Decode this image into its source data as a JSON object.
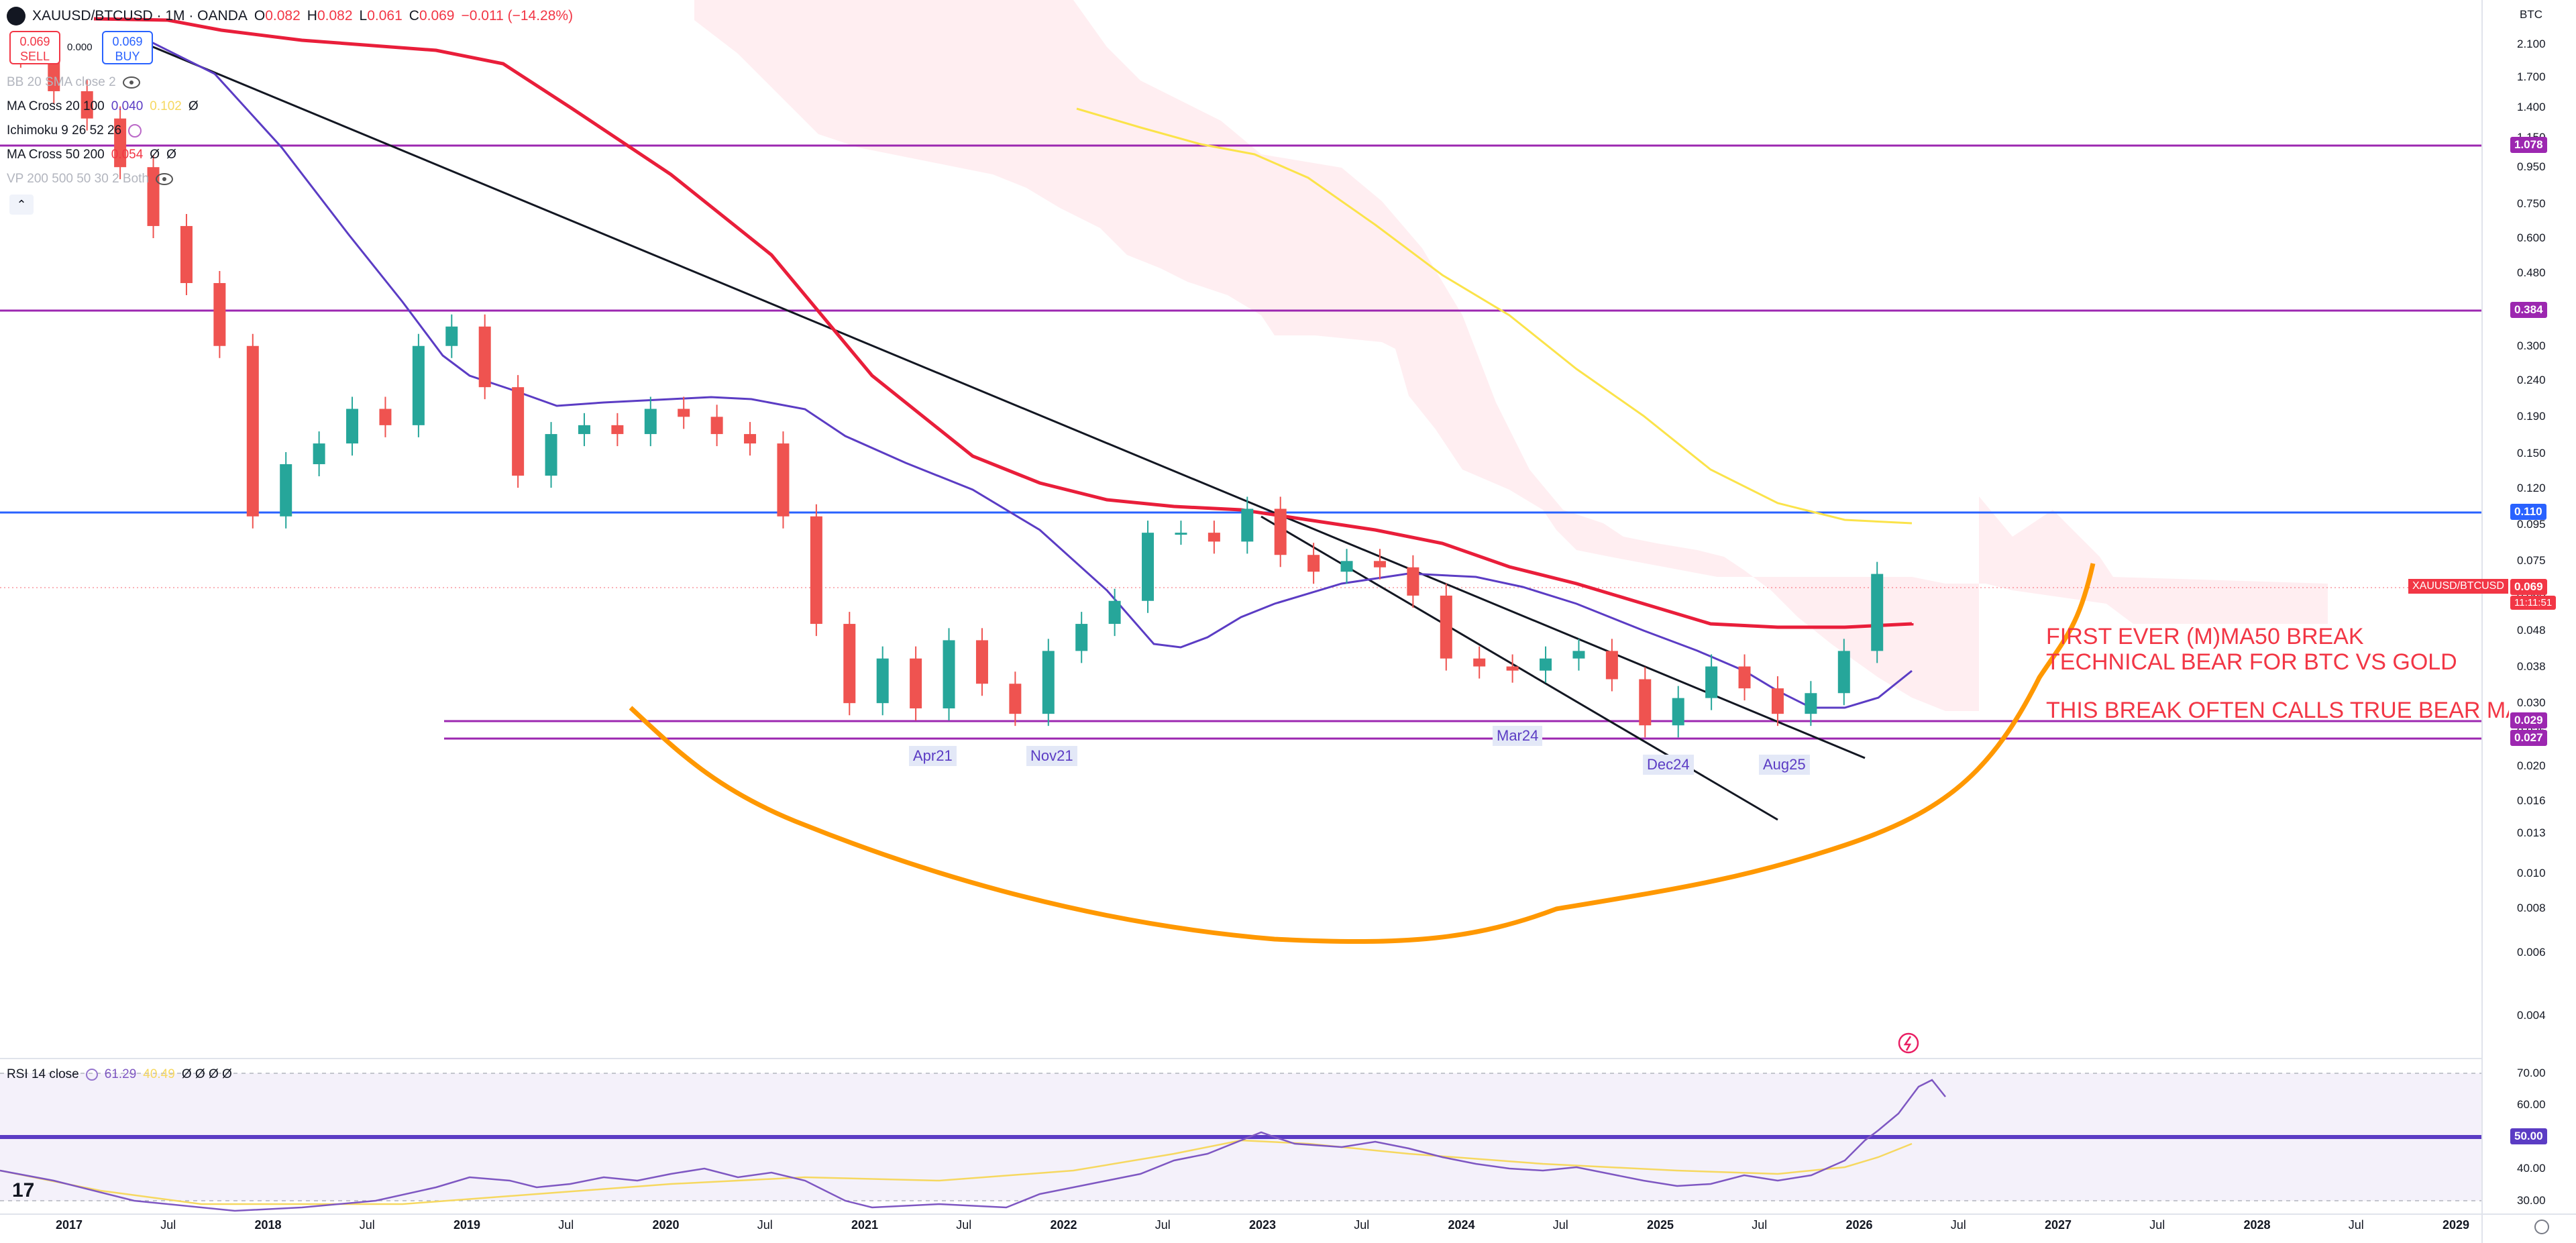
{
  "header": {
    "symbol_title": "XAUUSD/BTCUSD · 1M · OANDA",
    "open_label": "O",
    "open_value": "0.082",
    "high_label": "H",
    "high_value": "0.082",
    "low_label": "L",
    "low_value": "0.061",
    "close_label": "C",
    "close_value": "0.069",
    "change": "−0.011 (−14.28%)"
  },
  "trade": {
    "sell_price": "0.069",
    "sell_label": "SELL",
    "spread": "0.000",
    "buy_price": "0.069",
    "buy_label": "BUY"
  },
  "indicators": [
    {
      "name": "BB 20 SMA close 2",
      "values": [],
      "muted": true
    },
    {
      "name": "MA Cross 20 100",
      "values": [
        "0.040",
        "0.102",
        "Ø"
      ]
    },
    {
      "name": "Ichimoku 9 26 52 26",
      "values": []
    },
    {
      "name": "MA Cross 50 200",
      "values": [
        "0.054",
        "Ø",
        "Ø"
      ]
    },
    {
      "name": "VP 200 500 50 30 2 Both",
      "values": [],
      "muted": true
    }
  ],
  "rsi": {
    "name": "RSI 14 close",
    "value": "61.29",
    "ma_value": "40.49",
    "extra": "Ø Ø Ø Ø",
    "axis_ticks": [
      "70.00",
      "60.00",
      "50.00",
      "40.00",
      "30.00"
    ],
    "level_label": "50.00"
  },
  "price_axis": {
    "currency": "BTC",
    "ticks": [
      "2.100",
      "1.700",
      "1.400",
      "1.150",
      "0.950",
      "0.750",
      "0.600",
      "0.480",
      "0.380",
      "0.300",
      "0.240",
      "0.190",
      "0.150",
      "0.120",
      "0.095",
      "0.075",
      "0.060",
      "0.048",
      "0.038",
      "0.030",
      "0.025",
      "0.020",
      "0.016",
      "0.013",
      "0.010",
      "0.008",
      "0.006",
      "0.004"
    ],
    "level_labels": [
      "1.078",
      "0.384",
      "0.110",
      "0.029",
      "0.027"
    ],
    "price_tag_symbol": "XAUUSD/BTCUSD",
    "price_tag_value": "0.069",
    "countdown": "11:11:51"
  },
  "time_axis": [
    "2017",
    "Jul",
    "2018",
    "Jul",
    "2019",
    "Jul",
    "2020",
    "Jul",
    "2021",
    "Jul",
    "2022",
    "Jul",
    "2023",
    "Jul",
    "2024",
    "Jul",
    "2025",
    "Jul",
    "2026",
    "Jul",
    "2027",
    "Jul",
    "2028",
    "Jul",
    "2029"
  ],
  "annotations": {
    "point_labels": [
      "Apr21",
      "Nov21",
      "Mar24",
      "Dec24",
      "Aug25"
    ],
    "note1_line1": "FIRST EVER (M)MA50 BREAK",
    "note1_line2": "TECHNICAL BEAR FOR BTC VS GOLD",
    "note2": "THIS BREAK OFTEN CALLS TRUE BEAR MARK"
  },
  "chart_data": {
    "type": "candlestick",
    "title": "XAUUSD/BTCUSD · 1M · OANDA",
    "x_range": [
      "2016-08",
      "2029-02"
    ],
    "y_scale": "log",
    "y_range_btc": [
      0.0035,
      2.2
    ],
    "horizontal_levels": [
      1.078,
      0.384,
      0.11,
      0.029,
      0.027
    ],
    "series": [
      {
        "name": "XAUUSD/BTCUSD close (monthly, approx.)",
        "x": [
          "2016-08",
          "2016-10",
          "2016-12",
          "2017-02",
          "2017-04",
          "2017-06",
          "2017-08",
          "2017-10",
          "2017-12",
          "2018-02",
          "2018-04",
          "2018-06",
          "2018-08",
          "2018-10",
          "2018-12",
          "2019-02",
          "2019-04",
          "2019-06",
          "2019-08",
          "2019-10",
          "2019-12",
          "2020-02",
          "2020-04",
          "2020-06",
          "2020-08",
          "2020-10",
          "2020-12",
          "2021-02",
          "2021-04",
          "2021-06",
          "2021-08",
          "2021-10",
          "2021-12",
          "2022-02",
          "2022-04",
          "2022-06",
          "2022-08",
          "2022-10",
          "2022-12",
          "2023-02",
          "2023-04",
          "2023-06",
          "2023-08",
          "2023-10",
          "2023-12",
          "2024-02",
          "2024-04",
          "2024-06",
          "2024-08",
          "2024-10",
          "2024-12",
          "2025-02",
          "2025-04",
          "2025-06",
          "2025-08",
          "2025-10",
          "2025-12",
          "2026-02"
        ],
        "y": [
          2.05,
          1.95,
          1.55,
          1.3,
          0.95,
          0.65,
          0.45,
          0.3,
          0.1,
          0.14,
          0.16,
          0.2,
          0.18,
          0.3,
          0.34,
          0.23,
          0.13,
          0.17,
          0.18,
          0.17,
          0.2,
          0.19,
          0.17,
          0.16,
          0.1,
          0.05,
          0.03,
          0.04,
          0.029,
          0.045,
          0.034,
          0.028,
          0.042,
          0.05,
          0.058,
          0.09,
          0.09,
          0.085,
          0.105,
          0.078,
          0.07,
          0.075,
          0.072,
          0.06,
          0.04,
          0.038,
          0.037,
          0.04,
          0.042,
          0.035,
          0.026,
          0.031,
          0.038,
          0.033,
          0.028,
          0.032,
          0.042,
          0.069
        ]
      },
      {
        "name": "MA50 (red)",
        "x": [
          "2016-08",
          "2018-01",
          "2019-01",
          "2020-01",
          "2021-01",
          "2021-07",
          "2022-01",
          "2022-07",
          "2023-01",
          "2023-07",
          "2024-01",
          "2024-07",
          "2025-01",
          "2025-07",
          "2026-03"
        ],
        "y": [
          2.0,
          1.6,
          1.1,
          0.62,
          0.24,
          0.14,
          0.098,
          0.086,
          0.082,
          0.072,
          0.063,
          0.054,
          0.052,
          0.052,
          0.053
        ]
      },
      {
        "name": "MA20 (purple)",
        "x": [
          "2016-08",
          "2017-06",
          "2018-01",
          "2018-07",
          "2019-01",
          "2019-07",
          "2020-01",
          "2020-07",
          "2021-01",
          "2021-07",
          "2022-01",
          "2022-07",
          "2023-01",
          "2023-07",
          "2024-01",
          "2024-07",
          "2025-01",
          "2025-07",
          "2026-03"
        ],
        "y": [
          2.0,
          1.3,
          0.6,
          0.35,
          0.24,
          0.2,
          0.205,
          0.175,
          0.12,
          0.065,
          0.05,
          0.052,
          0.068,
          0.076,
          0.07,
          0.055,
          0.042,
          0.033,
          0.04
        ]
      },
      {
        "name": "MA100 (yellow)",
        "x": [
          "2021-09",
          "2022-06",
          "2022-12",
          "2023-06",
          "2024-01",
          "2024-07",
          "2025-01",
          "2025-05"
        ],
        "y": [
          1.25,
          1.15,
          0.85,
          0.5,
          0.29,
          0.175,
          0.117,
          0.104
        ]
      }
    ]
  }
}
